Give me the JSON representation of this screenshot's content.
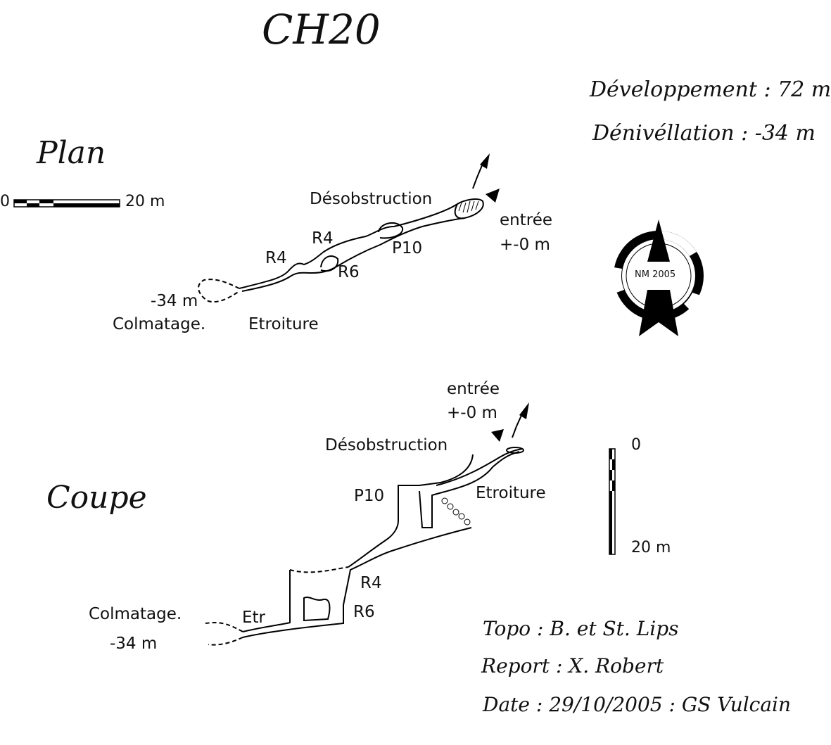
{
  "title": "CH20",
  "stats": {
    "development": "Développement : 72 m",
    "denivellation": "Dénivéllation :  -34 m"
  },
  "plan": {
    "heading": "Plan",
    "scale_start": "0",
    "scale_end": "20 m",
    "labels": {
      "desobstruction": "Désobstruction",
      "entree": "entrée",
      "entree_depth": "+-0 m",
      "r4_upper": "R4",
      "r4_lower": "R4",
      "p10": "P10",
      "r6": "R6",
      "depth_bottom": "-34 m",
      "colmatage": "Colmatage.",
      "etroiture": "Etroiture"
    },
    "compass_label": "NM 2005"
  },
  "coupe": {
    "heading": "Coupe",
    "scale_top": "0",
    "scale_bottom": "20 m",
    "labels": {
      "entree": "entrée",
      "entree_depth": "+-0 m",
      "desobstruction": "Désobstruction",
      "p10": "P10",
      "etroiture": "Etroiture",
      "r4": "R4",
      "r6": "R6",
      "etr": "Etr",
      "colmatage": "Colmatage.",
      "depth_bottom": "-34 m"
    }
  },
  "credits": {
    "topo": "Topo : B. et St. Lips",
    "report": "Report : X. Robert",
    "date": "Date : 29/10/2005 : GS Vulcain"
  }
}
